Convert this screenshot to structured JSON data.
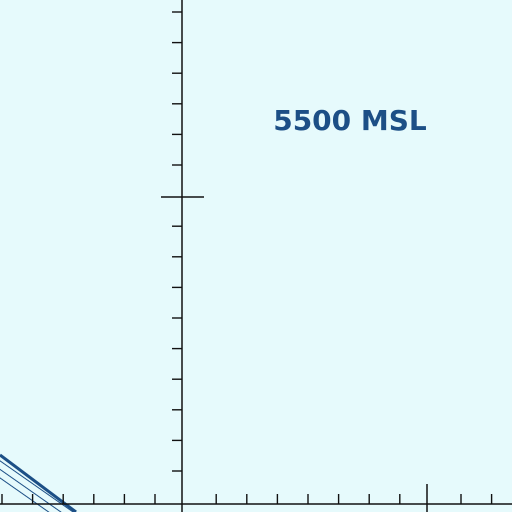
{
  "map": {
    "background_color": "#e6fafc",
    "grid_color": "#111111",
    "airspace_color": "#1c4f86",
    "altitude_label": "5500 MSL"
  }
}
